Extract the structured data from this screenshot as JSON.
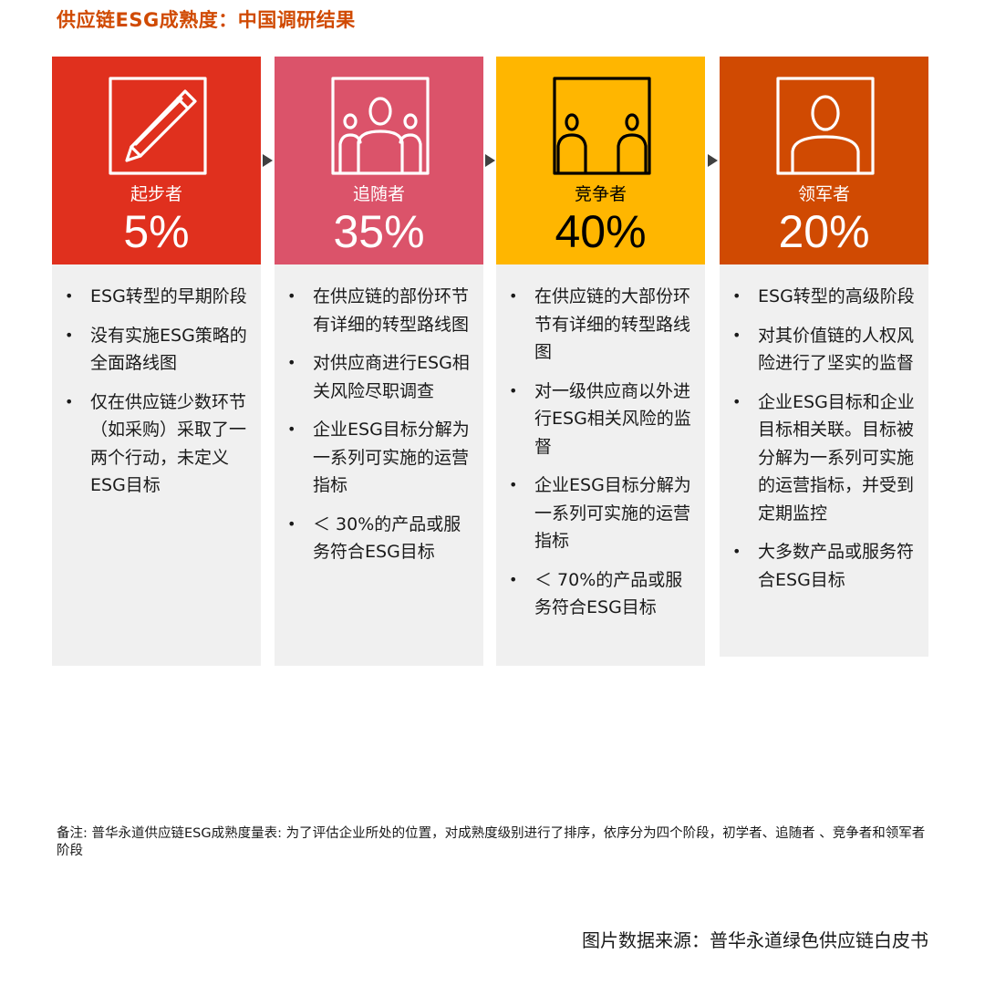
{
  "title": "供应链ESG成熟度：中国调研结果",
  "chart_data": {
    "type": "bar",
    "categories": [
      "起步者",
      "追随者",
      "竞争者",
      "领军者"
    ],
    "values": [
      5,
      35,
      40,
      20
    ],
    "value_labels": [
      "5%",
      "35%",
      "40%",
      "20%"
    ],
    "unit": "%"
  },
  "columns": [
    {
      "name": "起步者",
      "pct": "5%",
      "color": "#e0301e",
      "text_color": "#ffffff",
      "icon": "pencil-icon",
      "bullets": [
        "ESG转型的早期阶段",
        "没有实施ESG策略的全面路线图",
        "仅在供应链少数环节（如采购）采取了一两个行动，未定义ESG目标"
      ]
    },
    {
      "name": "追随者",
      "pct": "35%",
      "color": "#db536a",
      "text_color": "#ffffff",
      "icon": "group-of-people-icon",
      "bullets": [
        "在供应链的部份环节有详细的转型路线图",
        "对供应商进行ESG相关风险尽职调查",
        "企业ESG目标分解为一系列可实施的运营指标",
        "＜ 30%的产品或服务符合ESG目标"
      ]
    },
    {
      "name": "竞争者",
      "pct": "40%",
      "color": "#ffb600",
      "text_color": "#000000",
      "icon": "two-people-icon",
      "bullets": [
        "在供应链的大部份环节有详细的转型路线图",
        "对一级供应商以外进行ESG相关风险的监督",
        "企业ESG目标分解为一系列可实施的运营指标",
        "＜ 70%的产品或服务符合ESG目标"
      ]
    },
    {
      "name": "领军者",
      "pct": "20%",
      "color": "#d04a02",
      "text_color": "#ffffff",
      "icon": "leader-person-icon",
      "bullets": [
        "ESG转型的高级阶段",
        "对其价值链的人权风险进行了坚实的监督",
        "企业ESG目标和企业目标相关联。目标被分解为一系列可实施的运营指标，并受到定期监控",
        "大多数产品或服务符合ESG目标"
      ]
    }
  ],
  "note": "备注: 普华永道供应链ESG成熟度量表: 为了评估企业所处的位置，对成熟度级别进行了排序，依序分为四个阶段，初学者、追随者 、竞争者和领军者阶段",
  "source": "图片数据来源：普华永道绿色供应链白皮书"
}
